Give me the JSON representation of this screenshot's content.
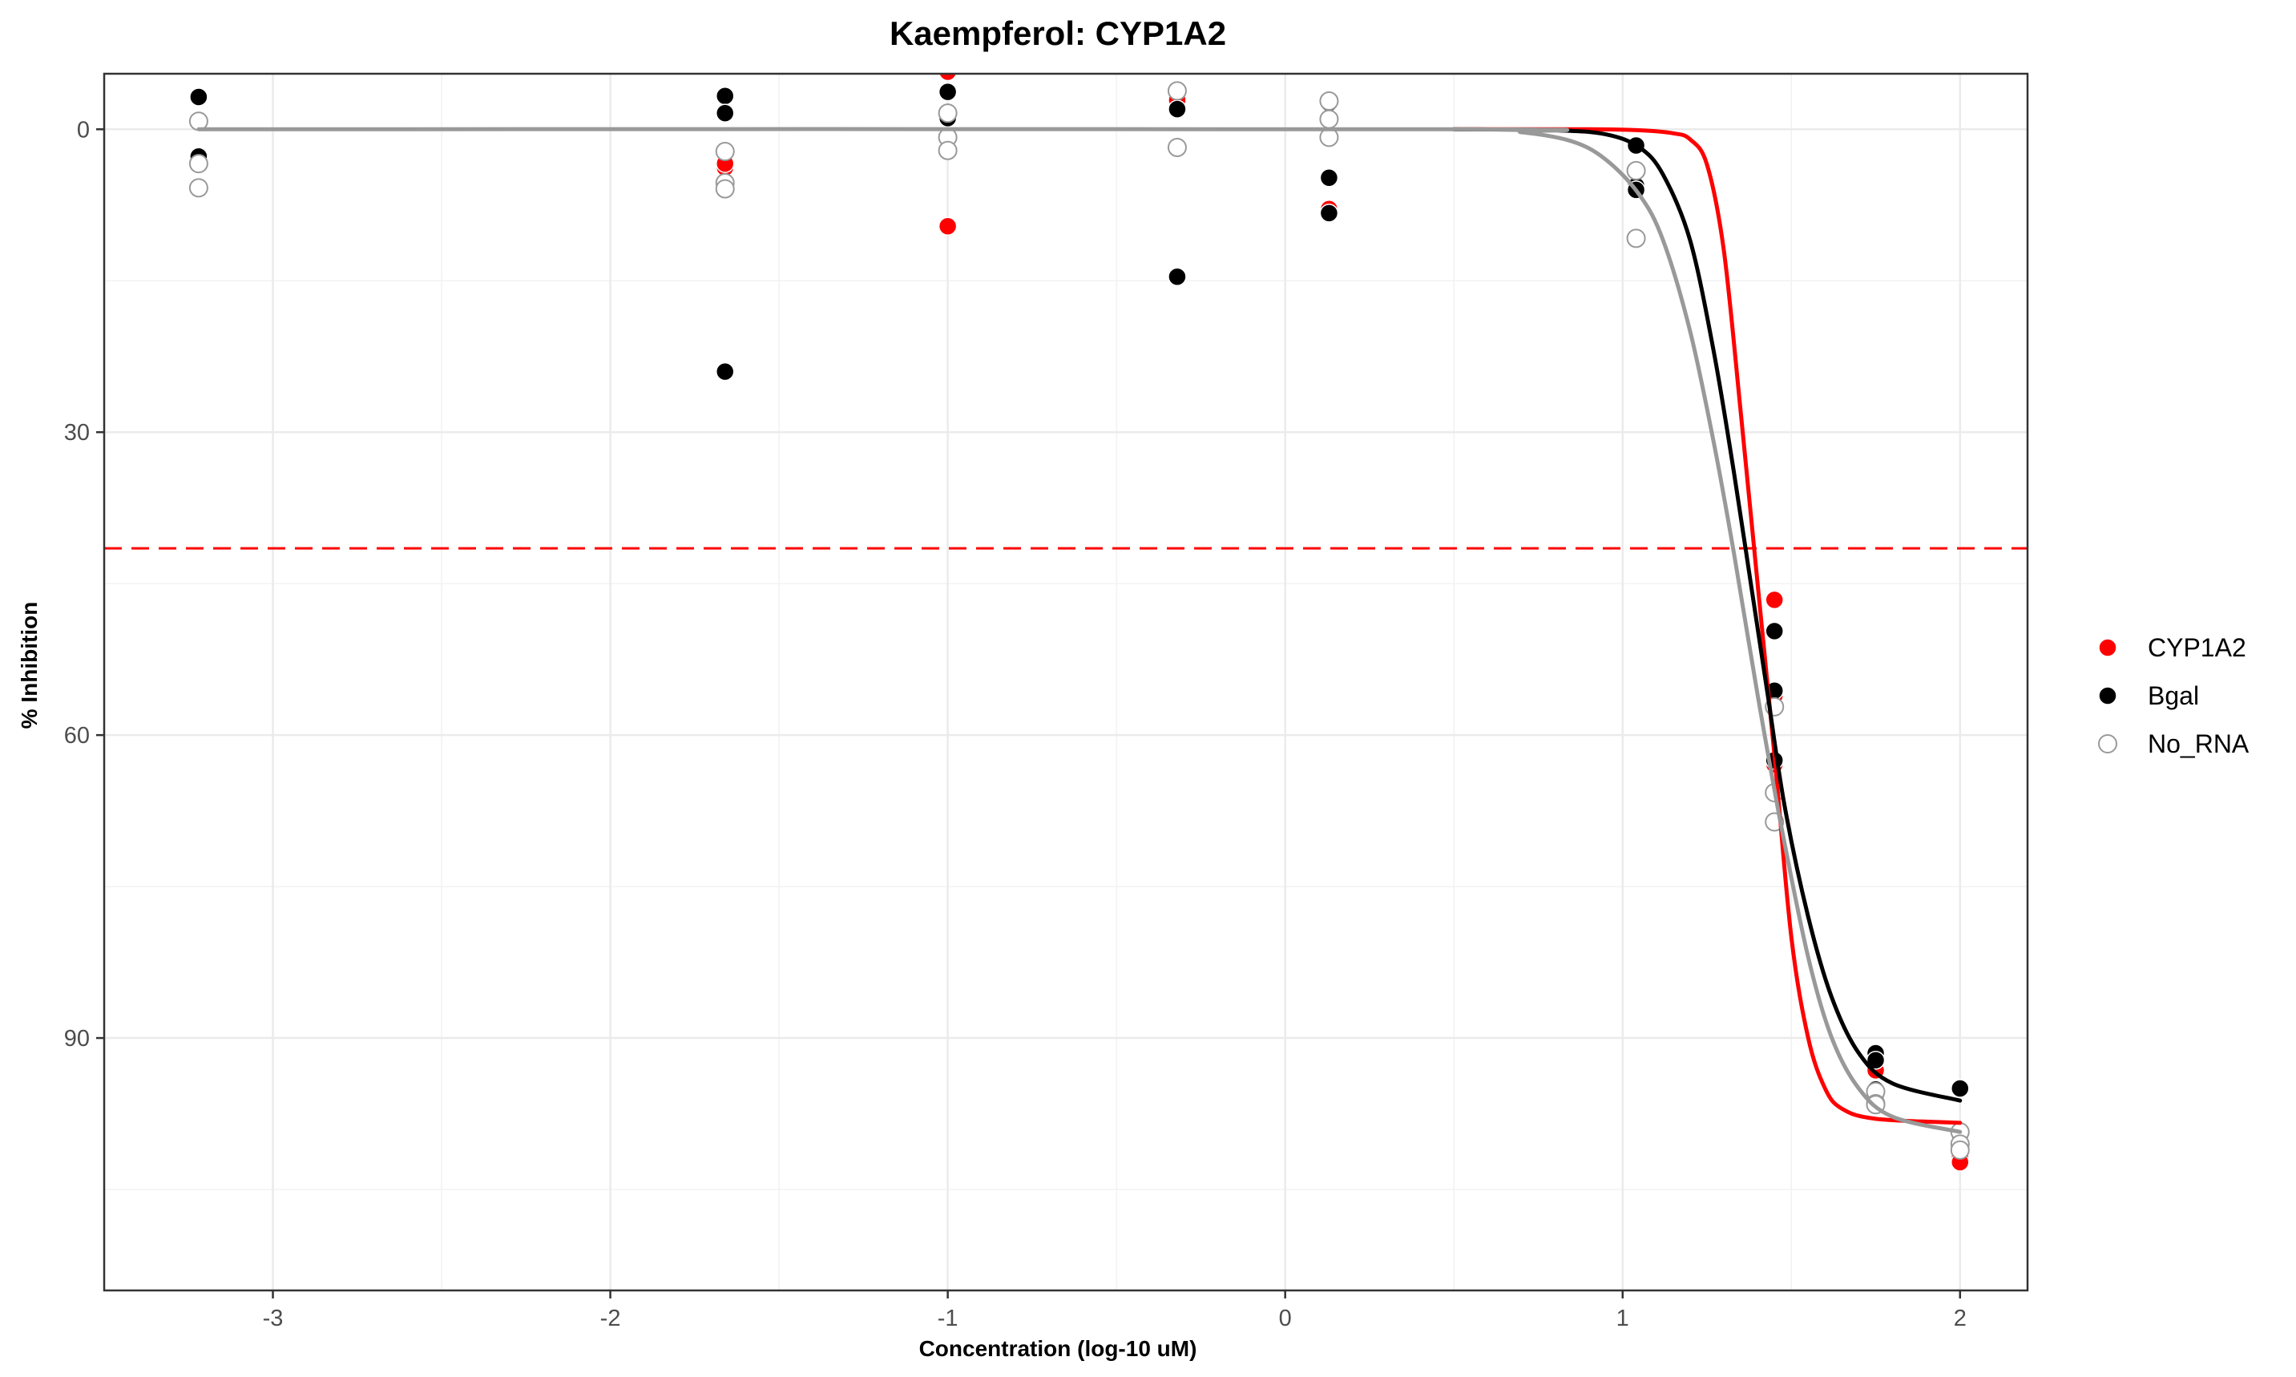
{
  "chart_data": {
    "type": "scatter",
    "title": "Kaempferol: CYP1A2",
    "xlabel": "Concentration (log-10 uM)",
    "ylabel": "% Inhibition",
    "xlim": [
      -3.5,
      2.2
    ],
    "ylim": [
      115,
      -5.5
    ],
    "y_reversed": true,
    "x_ticks": [
      -3,
      -2,
      -1,
      0,
      1,
      2
    ],
    "x_tick_labels": [
      "-3",
      "-2",
      "-1",
      "0",
      "1",
      "2"
    ],
    "y_ticks": [
      0,
      30,
      60,
      90
    ],
    "y_tick_labels": [
      "0",
      "30",
      "60",
      "90"
    ],
    "grid": true,
    "threshold_line": {
      "y": 41.5,
      "color": "#ff0000",
      "style": "dashed"
    },
    "legend": {
      "position": "right"
    },
    "series": [
      {
        "name": "CYP1A2",
        "color": "#ff0000",
        "marker": "filled",
        "points": [
          {
            "x": -3.22,
            "y": -3.2
          },
          {
            "x": -3.22,
            "y": 2.6
          },
          {
            "x": -1.66,
            "y": -6.3
          },
          {
            "x": -1.66,
            "y": 3.8
          },
          {
            "x": -1.66,
            "y": 3.4
          },
          {
            "x": -1.0,
            "y": -5.7
          },
          {
            "x": -1.0,
            "y": 9.6
          },
          {
            "x": -1.0,
            "y": -1.4
          },
          {
            "x": -0.32,
            "y": -3.6
          },
          {
            "x": -0.32,
            "y": -2.9
          },
          {
            "x": 0.13,
            "y": -2.7
          },
          {
            "x": 0.13,
            "y": 7.9
          },
          {
            "x": 1.04,
            "y": 1.7
          },
          {
            "x": 1.04,
            "y": 5.6
          },
          {
            "x": 1.45,
            "y": 46.6
          },
          {
            "x": 1.45,
            "y": 56.1
          },
          {
            "x": 1.45,
            "y": 62.9
          },
          {
            "x": 1.75,
            "y": 93.2
          },
          {
            "x": 1.75,
            "y": 95.7
          },
          {
            "x": 1.75,
            "y": 96.6
          },
          {
            "x": 2.0,
            "y": 100.3
          },
          {
            "x": 2.0,
            "y": 101.8
          },
          {
            "x": 2.0,
            "y": 102.3
          }
        ],
        "curve": [
          {
            "x": 0.5,
            "y": 0.0
          },
          {
            "x": 0.9,
            "y": 0.0
          },
          {
            "x": 1.05,
            "y": 0.1
          },
          {
            "x": 1.15,
            "y": 0.4
          },
          {
            "x": 1.2,
            "y": 1.0
          },
          {
            "x": 1.25,
            "y": 3.5
          },
          {
            "x": 1.3,
            "y": 12.0
          },
          {
            "x": 1.35,
            "y": 28.0
          },
          {
            "x": 1.4,
            "y": 45.0
          },
          {
            "x": 1.45,
            "y": 62.0
          },
          {
            "x": 1.5,
            "y": 80.0
          },
          {
            "x": 1.55,
            "y": 90.0
          },
          {
            "x": 1.6,
            "y": 95.0
          },
          {
            "x": 1.65,
            "y": 97.0
          },
          {
            "x": 1.75,
            "y": 98.0
          },
          {
            "x": 2.0,
            "y": 98.4
          }
        ]
      },
      {
        "name": "Bgal",
        "color": "#000000",
        "marker": "filled",
        "points": [
          {
            "x": -3.22,
            "y": -3.2
          },
          {
            "x": -3.22,
            "y": 2.7
          },
          {
            "x": -1.66,
            "y": -3.3
          },
          {
            "x": -1.66,
            "y": -1.6
          },
          {
            "x": -1.66,
            "y": 24.0
          },
          {
            "x": -1.0,
            "y": -3.7
          },
          {
            "x": -1.0,
            "y": -1.6
          },
          {
            "x": -1.0,
            "y": -1.1
          },
          {
            "x": -0.32,
            "y": -2.0
          },
          {
            "x": -0.32,
            "y": 14.6
          },
          {
            "x": 0.13,
            "y": -2.8
          },
          {
            "x": 0.13,
            "y": -2.6
          },
          {
            "x": 0.13,
            "y": 4.8
          },
          {
            "x": 0.13,
            "y": 8.3
          },
          {
            "x": 1.04,
            "y": 1.6
          },
          {
            "x": 1.04,
            "y": 5.6
          },
          {
            "x": 1.04,
            "y": 6.0
          },
          {
            "x": 1.45,
            "y": 49.7
          },
          {
            "x": 1.45,
            "y": 55.6
          },
          {
            "x": 1.45,
            "y": 62.5
          },
          {
            "x": 1.75,
            "y": 91.5
          },
          {
            "x": 1.75,
            "y": 92.2
          },
          {
            "x": 1.75,
            "y": 95.1
          },
          {
            "x": 2.0,
            "y": 95.0
          },
          {
            "x": 2.0,
            "y": 99.6
          }
        ],
        "curve": [
          {
            "x": 0.5,
            "y": 0.0
          },
          {
            "x": 0.8,
            "y": 0.1
          },
          {
            "x": 0.95,
            "y": 0.5
          },
          {
            "x": 1.05,
            "y": 1.8
          },
          {
            "x": 1.12,
            "y": 4.5
          },
          {
            "x": 1.2,
            "y": 11.0
          },
          {
            "x": 1.27,
            "y": 22.0
          },
          {
            "x": 1.33,
            "y": 34.0
          },
          {
            "x": 1.38,
            "y": 45.0
          },
          {
            "x": 1.43,
            "y": 56.0
          },
          {
            "x": 1.48,
            "y": 67.0
          },
          {
            "x": 1.55,
            "y": 78.0
          },
          {
            "x": 1.62,
            "y": 86.0
          },
          {
            "x": 1.7,
            "y": 91.5
          },
          {
            "x": 1.8,
            "y": 94.5
          },
          {
            "x": 2.0,
            "y": 96.2
          }
        ]
      },
      {
        "name": "No_RNA",
        "color": "#999999",
        "marker": "open",
        "points": [
          {
            "x": -3.22,
            "y": -0.8
          },
          {
            "x": -3.22,
            "y": 3.4
          },
          {
            "x": -3.22,
            "y": 5.8
          },
          {
            "x": -1.66,
            "y": 2.2
          },
          {
            "x": -1.66,
            "y": 5.3
          },
          {
            "x": -1.66,
            "y": 5.9
          },
          {
            "x": -1.0,
            "y": -1.6
          },
          {
            "x": -1.0,
            "y": 0.8
          },
          {
            "x": -1.0,
            "y": 2.1
          },
          {
            "x": -0.32,
            "y": -3.8
          },
          {
            "x": -0.32,
            "y": 1.8
          },
          {
            "x": 0.13,
            "y": -2.8
          },
          {
            "x": 0.13,
            "y": -1.0
          },
          {
            "x": 0.13,
            "y": 0.8
          },
          {
            "x": 1.04,
            "y": 4.1
          },
          {
            "x": 1.04,
            "y": 10.8
          },
          {
            "x": 1.45,
            "y": 57.2
          },
          {
            "x": 1.45,
            "y": 65.7
          },
          {
            "x": 1.45,
            "y": 68.6
          },
          {
            "x": 1.75,
            "y": 95.3
          },
          {
            "x": 1.75,
            "y": 96.5
          },
          {
            "x": 1.75,
            "y": 96.6
          },
          {
            "x": 2.0,
            "y": 99.3
          },
          {
            "x": 2.0,
            "y": 100.5
          },
          {
            "x": 2.0,
            "y": 101.1
          }
        ],
        "curve": [
          {
            "x": -3.22,
            "y": 0.0
          },
          {
            "x": 0.5,
            "y": 0.0
          },
          {
            "x": 0.7,
            "y": 0.3
          },
          {
            "x": 0.85,
            "y": 1.2
          },
          {
            "x": 0.95,
            "y": 3.0
          },
          {
            "x": 1.05,
            "y": 6.5
          },
          {
            "x": 1.12,
            "y": 11.0
          },
          {
            "x": 1.2,
            "y": 20.0
          },
          {
            "x": 1.27,
            "y": 31.0
          },
          {
            "x": 1.33,
            "y": 42.0
          },
          {
            "x": 1.4,
            "y": 56.0
          },
          {
            "x": 1.47,
            "y": 69.0
          },
          {
            "x": 1.55,
            "y": 82.0
          },
          {
            "x": 1.62,
            "y": 90.0
          },
          {
            "x": 1.7,
            "y": 95.0
          },
          {
            "x": 1.8,
            "y": 97.8
          },
          {
            "x": 2.0,
            "y": 99.3
          }
        ]
      }
    ]
  }
}
